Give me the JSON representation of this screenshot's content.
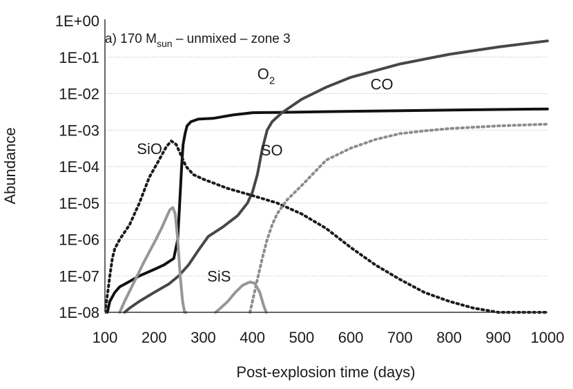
{
  "chart_data": {
    "type": "line",
    "title": {
      "prefix": "a) 170 M",
      "subscript": "sun",
      "suffix": " – unmixed – zone 3"
    },
    "xlabel": "Post-explosion time (days)",
    "ylabel": "Abundance",
    "yscale": "log",
    "xlim": [
      100,
      1000
    ],
    "ylim": [
      1e-08,
      1
    ],
    "x_ticks": [
      100,
      200,
      300,
      400,
      500,
      600,
      700,
      800,
      900,
      1000
    ],
    "x_tick_labels": [
      "100",
      "200",
      "300",
      "400",
      "500",
      "600",
      "700",
      "800",
      "900",
      "1000"
    ],
    "y_ticks": [
      1,
      0.1,
      0.01,
      0.001,
      0.0001,
      1e-05,
      1e-06,
      1e-07,
      1e-08
    ],
    "y_tick_labels": [
      "1E+00",
      "1E-01",
      "1E-02",
      "1E-03",
      "1E-04",
      "1E-05",
      "1E-06",
      "1E-07",
      "1E-08"
    ],
    "grid": "horizontal",
    "series": [
      {
        "name": "CO",
        "label": "CO",
        "color": "#111111",
        "dash": "solid",
        "label_x": 640,
        "label_y": 0.013,
        "x": [
          105,
          110,
          120,
          130,
          150,
          170,
          200,
          220,
          240,
          248,
          252,
          256,
          259,
          263,
          267,
          275,
          290,
          320,
          360,
          400,
          450,
          550,
          700,
          850,
          1000
        ],
        "y": [
          1e-08,
          2e-08,
          3.5e-08,
          5e-08,
          7e-08,
          1e-07,
          1.5e-07,
          2e-07,
          3e-07,
          1e-06,
          1e-05,
          0.0001,
          0.0004,
          0.0008,
          0.0013,
          0.0017,
          0.002,
          0.0021,
          0.0026,
          0.003,
          0.00305,
          0.0032,
          0.0034,
          0.0036,
          0.0038
        ]
      },
      {
        "name": "O2",
        "label": "O",
        "label_sub": "2",
        "color": "#474747",
        "dash": "solid",
        "label_x": 410,
        "label_y": 0.025,
        "x": [
          140,
          150,
          170,
          200,
          230,
          250,
          270,
          290,
          310,
          340,
          370,
          390,
          400,
          410,
          420,
          430,
          440,
          460,
          500,
          550,
          600,
          700,
          800,
          900,
          1000
        ],
        "y": [
          1e-08,
          1.3e-08,
          2e-08,
          3.5e-08,
          6e-08,
          1e-07,
          2e-07,
          5e-07,
          1.2e-06,
          2.2e-06,
          4.5e-06,
          1e-05,
          2e-05,
          6e-05,
          0.0003,
          0.001,
          0.0017,
          0.003,
          0.007,
          0.015,
          0.028,
          0.065,
          0.12,
          0.19,
          0.28
        ]
      },
      {
        "name": "SiO",
        "label": "SiO",
        "color": "#1a1a1a",
        "dash": "dotted",
        "label_x": 165,
        "label_y": 0.00022,
        "x": [
          100,
          105,
          110,
          115,
          120,
          130,
          150,
          170,
          190,
          210,
          225,
          235,
          245,
          255,
          265,
          280,
          300,
          350,
          400,
          450,
          500,
          550,
          600,
          650,
          700,
          750,
          800,
          850,
          900,
          950,
          1000
        ],
        "y": [
          1e-08,
          3e-08,
          1e-07,
          3e-07,
          5.5e-07,
          1e-06,
          2.5e-06,
          1e-05,
          5e-05,
          0.00015,
          0.00035,
          0.0005,
          0.0004,
          0.0002,
          0.0001,
          6e-05,
          4.5e-05,
          2.5e-05,
          1.6e-05,
          1e-05,
          5e-06,
          2e-06,
          6e-07,
          2e-07,
          8e-08,
          3.5e-08,
          2e-08,
          1.3e-08,
          1e-08,
          1e-08,
          1e-08
        ]
      },
      {
        "name": "SO",
        "label": "SO",
        "color": "#8c8c8c",
        "dash": "dotted",
        "label_x": 417,
        "label_y": 0.0002,
        "x": [
          395,
          400,
          410,
          420,
          430,
          440,
          450,
          470,
          500,
          550,
          600,
          650,
          700,
          750,
          800,
          900,
          1000
        ],
        "y": [
          1e-08,
          2e-08,
          8e-08,
          3e-07,
          1e-06,
          2.5e-06,
          5e-06,
          1.2e-05,
          3e-05,
          0.00015,
          0.00032,
          0.00055,
          0.0008,
          0.00095,
          0.0011,
          0.0013,
          0.00145
        ]
      },
      {
        "name": "SiS",
        "label": "SiS",
        "color": "#969696",
        "dash": "solid",
        "label_x": 308,
        "label_y": 7e-08,
        "segments": [
          {
            "x": [
              130,
              140,
              160,
              180,
              200,
              215,
              225,
              232,
              238,
              243,
              248,
              253,
              258,
              262,
              265
            ],
            "y": [
              1e-08,
              2e-08,
              7e-08,
              2.5e-07,
              8e-07,
              2e-06,
              4e-06,
              6.5e-06,
              7.5e-06,
              5e-06,
              1e-06,
              1e-07,
              2e-08,
              1e-08,
              1e-08
            ]
          },
          {
            "x": [
              325,
              335,
              350,
              365,
              380,
              395,
              405,
              415,
              423,
              428
            ],
            "y": [
              1e-08,
              1.3e-08,
              2e-08,
              3.5e-08,
              5.5e-08,
              6.8e-08,
              6.2e-08,
              3.5e-08,
              1.5e-08,
              1e-08
            ]
          }
        ]
      }
    ]
  }
}
